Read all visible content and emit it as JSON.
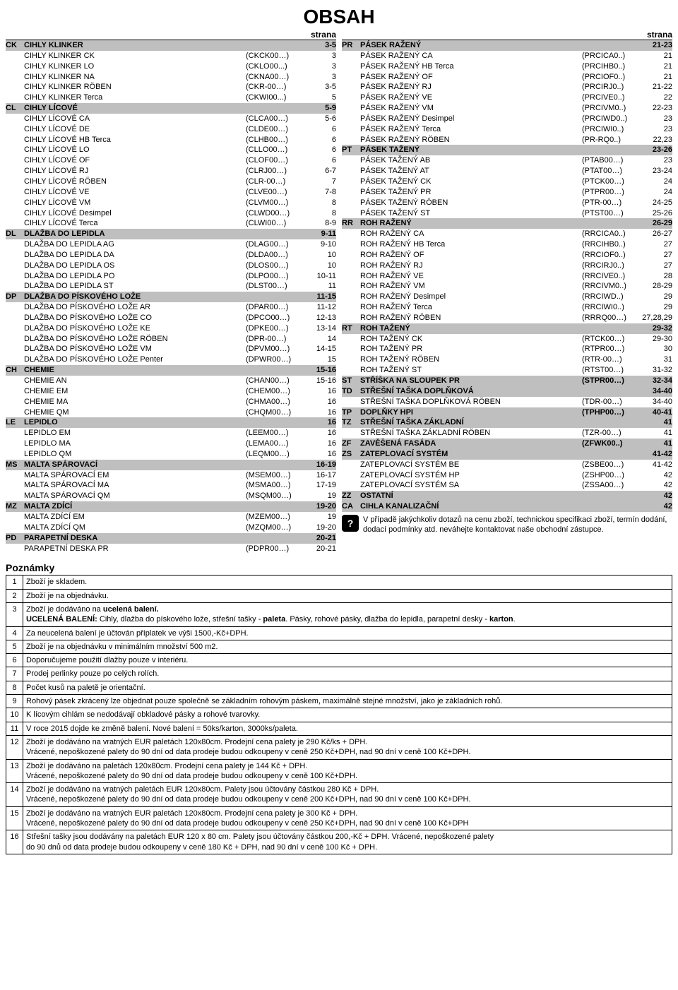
{
  "title": "OBSAH",
  "column_header_left": "strana",
  "column_header_right": "strana",
  "left_rows": [
    {
      "tag": "CK",
      "name": "CIHLY KLINKER",
      "code": "",
      "page": "3-5",
      "style": "section"
    },
    {
      "tag": "",
      "name": "CIHLY KLINKER CK",
      "code": "(CKCK00…)",
      "page": "3",
      "style": ""
    },
    {
      "tag": "",
      "name": "CIHLY KLINKER LO",
      "code": "(CKLO00...)",
      "page": "3",
      "style": ""
    },
    {
      "tag": "",
      "name": "CIHLY KLINKER NA",
      "code": "(CKNA00…)",
      "page": "3",
      "style": ""
    },
    {
      "tag": "",
      "name": "CIHLY KLINKER RÖBEN",
      "code": "(CKR-00…)",
      "page": "3-5",
      "style": ""
    },
    {
      "tag": "",
      "name": "CIHLY KLINKER Terca",
      "code": "(CKWI00...)",
      "page": "5",
      "style": ""
    },
    {
      "tag": "CL",
      "name": "CIHLY LÍCOVÉ",
      "code": "",
      "page": "5-9",
      "style": "section"
    },
    {
      "tag": "",
      "name": "CIHLY LÍCOVÉ CA",
      "code": "(CLCA00…)",
      "page": "5-6",
      "style": ""
    },
    {
      "tag": "",
      "name": "CIHLY LÍCOVÉ DE",
      "code": "(CLDE00…)",
      "page": "6",
      "style": ""
    },
    {
      "tag": "",
      "name": "CIHLY LÍCOVÉ HB Terca",
      "code": "(CLHB00…)",
      "page": "6",
      "style": ""
    },
    {
      "tag": "",
      "name": "CIHLY LÍCOVÉ LO",
      "code": "(CLLO00…)",
      "page": "6",
      "style": ""
    },
    {
      "tag": "",
      "name": "CIHLY LÍCOVÉ OF",
      "code": "(CLOF00…)",
      "page": "6",
      "style": ""
    },
    {
      "tag": "",
      "name": "CIHLY LÍCOVÉ RJ",
      "code": "(CLRJ00…)",
      "page": "6-7",
      "style": ""
    },
    {
      "tag": "",
      "name": "CIHLY LÍCOVÉ RÖBEN",
      "code": "(CLR-00…)",
      "page": "7",
      "style": ""
    },
    {
      "tag": "",
      "name": "CIHLY LÍCOVÉ VE",
      "code": "(CLVE00…)",
      "page": "7-8",
      "style": ""
    },
    {
      "tag": "",
      "name": "CIHLY LÍCOVÉ VM",
      "code": "(CLVM00…)",
      "page": "8",
      "style": ""
    },
    {
      "tag": "",
      "name": "CIHLY LÍCOVÉ Desimpel",
      "code": "(CLWD00…)",
      "page": "8",
      "style": ""
    },
    {
      "tag": "",
      "name": "CIHLY LÍCOVÉ Terca",
      "code": "(CLWI00…)",
      "page": "8-9",
      "style": ""
    },
    {
      "tag": "DL",
      "name": "DLAŽBA DO LEPIDLA",
      "code": "",
      "page": "9-11",
      "style": "section"
    },
    {
      "tag": "",
      "name": "DLAŽBA DO LEPIDLA AG",
      "code": "(DLAG00…)",
      "page": "9-10",
      "style": ""
    },
    {
      "tag": "",
      "name": "DLAŽBA DO LEPIDLA DA",
      "code": "(DLDA00…)",
      "page": "10",
      "style": ""
    },
    {
      "tag": "",
      "name": "DLAŽBA DO LEPIDLA OS",
      "code": "(DLOS00…)",
      "page": "10",
      "style": ""
    },
    {
      "tag": "",
      "name": "DLAŽBA DO LEPIDLA PO",
      "code": "(DLPO00…)",
      "page": "10-11",
      "style": ""
    },
    {
      "tag": "",
      "name": "DLAŽBA DO LEPIDLA ST",
      "code": "(DLST00…)",
      "page": "11",
      "style": ""
    },
    {
      "tag": "DP",
      "name": "DLAŽBA DO PÍSKOVÉHO LOŽE",
      "code": "",
      "page": "11-15",
      "style": "section"
    },
    {
      "tag": "",
      "name": "DLAŽBA DO PÍSKOVÉHO LOŽE AR",
      "code": "(DPAR00…)",
      "page": "11-12",
      "style": ""
    },
    {
      "tag": "",
      "name": "DLAŽBA DO PÍSKOVÉHO LOŽE CO",
      "code": "(DPCO00…)",
      "page": "12-13",
      "style": ""
    },
    {
      "tag": "",
      "name": "DLAŽBA DO PÍSKOVÉHO LOŽE KE",
      "code": "(DPKE00…)",
      "page": "13-14",
      "style": ""
    },
    {
      "tag": "",
      "name": "DLAŽBA DO PÍSKOVÉHO LOŽE RÖBEN",
      "code": "(DPR-00…)",
      "page": "14",
      "style": ""
    },
    {
      "tag": "",
      "name": "DLAŽBA DO PÍSKOVÉHO LOŽE VM",
      "code": "(DPVM00…)",
      "page": "14-15",
      "style": ""
    },
    {
      "tag": "",
      "name": "DLAŽBA DO PÍSKOVÉHO LOŽE Penter",
      "code": "(DPWR00…)",
      "page": "15",
      "style": ""
    },
    {
      "tag": "CH",
      "name": "CHEMIE",
      "code": "",
      "page": "15-16",
      "style": "section"
    },
    {
      "tag": "",
      "name": "CHEMIE AN",
      "code": "(CHAN00…)",
      "page": "15-16",
      "style": ""
    },
    {
      "tag": "",
      "name": "CHEMIE EM",
      "code": "(CHEM00…)",
      "page": "16",
      "style": ""
    },
    {
      "tag": "",
      "name": "CHEMIE MA",
      "code": "(CHMA00…)",
      "page": "16",
      "style": ""
    },
    {
      "tag": "",
      "name": "CHEMIE QM",
      "code": "(CHQM00…)",
      "page": "16",
      "style": ""
    },
    {
      "tag": "LE",
      "name": "LEPIDLO",
      "code": "",
      "page": "16",
      "style": "section"
    },
    {
      "tag": "",
      "name": "LEPIDLO EM",
      "code": "(LEEM00…)",
      "page": "16",
      "style": ""
    },
    {
      "tag": "",
      "name": "LEPIDLO MA",
      "code": "(LEMA00…)",
      "page": "16",
      "style": ""
    },
    {
      "tag": "",
      "name": "LEPIDLO QM",
      "code": "(LEQM00…)",
      "page": "16",
      "style": ""
    },
    {
      "tag": "MS",
      "name": "MALTA SPÁROVACÍ",
      "code": "",
      "page": "16-19",
      "style": "section"
    },
    {
      "tag": "",
      "name": "MALTA SPÁROVACÍ EM",
      "code": "(MSEM00…)",
      "page": "16-17",
      "style": ""
    },
    {
      "tag": "",
      "name": "MALTA SPÁROVACÍ MA",
      "code": "(MSMA00…)",
      "page": "17-19",
      "style": ""
    },
    {
      "tag": "",
      "name": "MALTA SPÁROVACÍ QM",
      "code": "(MSQM00…)",
      "page": "19",
      "style": ""
    },
    {
      "tag": "MZ",
      "name": "MALTA ZDÍCÍ",
      "code": "",
      "page": "19-20",
      "style": "section"
    },
    {
      "tag": "",
      "name": "MALTA ZDÍCÍ EM",
      "code": "(MZEM00…)",
      "page": "19",
      "style": ""
    },
    {
      "tag": "",
      "name": "MALTA ZDÍCÍ QM",
      "code": "(MZQM00…)",
      "page": "19-20",
      "style": ""
    },
    {
      "tag": "PD",
      "name": "PARAPETNÍ DESKA",
      "code": "",
      "page": "20-21",
      "style": "section"
    },
    {
      "tag": "",
      "name": "PARAPETNÍ DESKA PR",
      "code": "(PDPR00…)",
      "page": "20-21",
      "style": ""
    }
  ],
  "right_rows": [
    {
      "tag": "PR",
      "name": "PÁSEK RAŽENÝ",
      "code": "",
      "page": "21-23",
      "style": "section"
    },
    {
      "tag": "",
      "name": "PÁSEK RAŽENÝ CA",
      "code": "(PRCICA0..)",
      "page": "21",
      "style": ""
    },
    {
      "tag": "",
      "name": "PÁSEK RAŽENÝ HB Terca",
      "code": "(PRCIHB0..)",
      "page": "21",
      "style": ""
    },
    {
      "tag": "",
      "name": "PÁSEK RAŽENÝ OF",
      "code": "(PRCIOF0..)",
      "page": "21",
      "style": ""
    },
    {
      "tag": "",
      "name": "PÁSEK RAŽENÝ RJ",
      "code": "(PRCIRJ0..)",
      "page": "21-22",
      "style": ""
    },
    {
      "tag": "",
      "name": "PÁSEK RAŽENÝ VE",
      "code": "(PRCIVE0..)",
      "page": "22",
      "style": ""
    },
    {
      "tag": "",
      "name": "PÁSEK RAŽENÝ VM",
      "code": "(PRCIVM0..)",
      "page": "22-23",
      "style": ""
    },
    {
      "tag": "",
      "name": "PÁSEK RAŽENÝ Desimpel",
      "code": "(PRCIWD0..)",
      "page": "23",
      "style": ""
    },
    {
      "tag": "",
      "name": "PÁSEK RAŽENÝ Terca",
      "code": "(PRCIWI0..)",
      "page": "23",
      "style": ""
    },
    {
      "tag": "",
      "name": "PÁSEK RAŽENÝ RÖBEN",
      "code": "(PR-RQ0..)",
      "page": "22,23",
      "style": ""
    },
    {
      "tag": "PT",
      "name": "PÁSEK TAŽENÝ",
      "code": "",
      "page": "23-26",
      "style": "section"
    },
    {
      "tag": "",
      "name": "PÁSEK TAŽENÝ AB",
      "code": "(PTAB00…)",
      "page": "23",
      "style": ""
    },
    {
      "tag": "",
      "name": "PÁSEK TAŽENÝ AT",
      "code": "(PTAT00…)",
      "page": "23-24",
      "style": ""
    },
    {
      "tag": "",
      "name": "PÁSEK TAŽENÝ CK",
      "code": "(PTCK00…)",
      "page": "24",
      "style": ""
    },
    {
      "tag": "",
      "name": "PÁSEK TAŽENÝ PR",
      "code": "(PTPR00…)",
      "page": "24",
      "style": ""
    },
    {
      "tag": "",
      "name": "PÁSEK TAŽENÝ RÖBEN",
      "code": "(PTR-00…)",
      "page": "24-25",
      "style": ""
    },
    {
      "tag": "",
      "name": "PÁSEK TAŽENÝ ST",
      "code": "(PTST00…)",
      "page": "25-26",
      "style": ""
    },
    {
      "tag": "RR",
      "name": "ROH RAŽENÝ",
      "code": "",
      "page": "26-29",
      "style": "section"
    },
    {
      "tag": "",
      "name": "ROH RAŽENÝ CA",
      "code": "(RRCICA0..)",
      "page": "26-27",
      "style": ""
    },
    {
      "tag": "",
      "name": "ROH RAŽENÝ HB Terca",
      "code": "(RRCIHB0..)",
      "page": "27",
      "style": ""
    },
    {
      "tag": "",
      "name": "ROH RAŽENÝ OF",
      "code": "(RRCIOF0..)",
      "page": "27",
      "style": ""
    },
    {
      "tag": "",
      "name": "ROH RAŽENÝ RJ",
      "code": "(RRCIRJ0..)",
      "page": "27",
      "style": ""
    },
    {
      "tag": "",
      "name": "ROH RAŽENÝ VE",
      "code": "(RRCIVE0..)",
      "page": "28",
      "style": ""
    },
    {
      "tag": "",
      "name": "ROH RAŽENÝ VM",
      "code": "(RRCIVM0..)",
      "page": "28-29",
      "style": ""
    },
    {
      "tag": "",
      "name": "ROH RAŽENÝ Desimpel",
      "code": "(RRCIWD..)",
      "page": "29",
      "style": ""
    },
    {
      "tag": "",
      "name": "ROH RAŽENÝ Terca",
      "code": "(RRCIWI0..)",
      "page": "29",
      "style": ""
    },
    {
      "tag": "",
      "name": "ROH RAŽENÝ RÖBEN",
      "code": "(RRRQ00…)",
      "page": "27,28,29",
      "style": ""
    },
    {
      "tag": "RT",
      "name": "ROH TAŽENÝ",
      "code": "",
      "page": "29-32",
      "style": "section"
    },
    {
      "tag": "",
      "name": "ROH TAŽENÝ CK",
      "code": "(RTCK00…)",
      "page": "29-30",
      "style": ""
    },
    {
      "tag": "",
      "name": "ROH TAŽENÝ PR",
      "code": "(RTPR00…)",
      "page": "30",
      "style": ""
    },
    {
      "tag": "",
      "name": "ROH TAŽENÝ RÖBEN",
      "code": "(RTR-00…)",
      "page": "31",
      "style": ""
    },
    {
      "tag": "",
      "name": "ROH TAŽENÝ ST",
      "code": "(RTST00…)",
      "page": "31-32",
      "style": ""
    },
    {
      "tag": "ST",
      "name": "STŘÍŠKA NA SLOUPEK PR",
      "code": "(STPR00…)",
      "page": "32-34",
      "style": "section"
    },
    {
      "tag": "TD",
      "name": "STŘEŠNÍ TAŠKA DOPLŇKOVÁ",
      "code": "",
      "page": "34-40",
      "style": "section"
    },
    {
      "tag": "",
      "name": "STŘEŠNÍ TAŠKA DOPLŇKOVÁ RÖBEN",
      "code": "(TDR-00…)",
      "page": "34-40",
      "style": ""
    },
    {
      "tag": "TP",
      "name": "DOPLŇKY HPI",
      "code": "(TPHP00…)",
      "page": "40-41",
      "style": "section"
    },
    {
      "tag": "TZ",
      "name": "STŘEŠNÍ TAŠKA ZÁKLADNÍ",
      "code": "",
      "page": "41",
      "style": "section"
    },
    {
      "tag": "",
      "name": "STŘEŠNÍ TAŠKA ZÁKLADNÍ RÖBEN",
      "code": "(TZR-00…)",
      "page": "41",
      "style": ""
    },
    {
      "tag": "ZF",
      "name": "ZAVĚŠENÁ FASÁDA",
      "code": "(ZFWK00..)",
      "page": "41",
      "style": "section"
    },
    {
      "tag": "ZS",
      "name": "ZATEPLOVACÍ SYSTÉM",
      "code": "",
      "page": "41-42",
      "style": "section"
    },
    {
      "tag": "",
      "name": "ZATEPLOVACÍ SYSTÉM BE",
      "code": "(ZSBE00…)",
      "page": "41-42",
      "style": ""
    },
    {
      "tag": "",
      "name": "ZATEPLOVACÍ SYSTÉM HP",
      "code": "(ZSHP00…)",
      "page": "42",
      "style": ""
    },
    {
      "tag": "",
      "name": "ZATEPLOVACÍ SYSTÉM SA",
      "code": "(ZSSA00…)",
      "page": "42",
      "style": ""
    },
    {
      "tag": "ZZ",
      "name": "OSTATNÍ",
      "code": "",
      "page": "42",
      "style": "section"
    },
    {
      "tag": "CA",
      "name": "CIHLA KANALIZAČNÍ",
      "code": "",
      "page": "42",
      "style": "section"
    }
  ],
  "info_note": "V případě jakýchkoliv dotazů na cenu zboží, technickou specifikaci zboží, termín dodání, dodací podmínky atd. neváhejte kontaktovat naše obchodní zástupce.",
  "info_icon": "?",
  "pozn_title": "Poznámky",
  "notes": [
    {
      "n": "1",
      "lines": [
        "Zboží je skladem."
      ]
    },
    {
      "n": "2",
      "lines": [
        "Zboží je na objednávku."
      ]
    },
    {
      "n": "3",
      "lines": [
        "Zboží je dodáváno na <b>ucelená balení.</b>",
        "<b>UCELENÁ BALENÍ:</b> Cihly, dlažba do pískového lože, střešní tašky - <b>paleta</b>. Pásky, rohové pásky, dlažba do lepidla, parapetní desky - <b>karton</b>."
      ]
    },
    {
      "n": "4",
      "lines": [
        "Za neucelená balení je účtován příplatek ve výši 1500,-Kč+DPH."
      ]
    },
    {
      "n": "5",
      "lines": [
        "Zboží je na objednávku v minimálním množství 500 m2."
      ]
    },
    {
      "n": "6",
      "lines": [
        "Doporučujeme použití dlažby pouze v interiéru."
      ]
    },
    {
      "n": "7",
      "lines": [
        "Prodej perlinky pouze po celých rolích."
      ]
    },
    {
      "n": "8",
      "lines": [
        "Počet kusů na paletě je orientační."
      ]
    },
    {
      "n": "9",
      "lines": [
        "Rohový pásek zkrácený lze objednat pouze společně se základním rohovým páskem, maximálně stejné množství, jako je základních rohů."
      ]
    },
    {
      "n": "10",
      "lines": [
        "K lícovým cihlám se nedodávají obkladové pásky a rohové tvarovky."
      ]
    },
    {
      "n": "11",
      "lines": [
        "V roce 2015 dojde ke změně balení. Nové balení = 50ks/karton, 3000ks/paleta."
      ]
    },
    {
      "n": "12",
      "lines": [
        "Zboží je dodáváno na vratných EUR paletách 120x80cm. Prodejní cena palety je 290 Kč/ks + DPH.",
        "Vrácené, nepoškozené palety do 90 dní od data prodeje budou odkoupeny v ceně 250 Kč+DPH, nad 90 dní v ceně 100 Kč+DPH."
      ]
    },
    {
      "n": "13",
      "lines": [
        "Zboží je dodáváno na paletách 120x80cm. Prodejní cena palety je 144 Kč + DPH.",
        "Vrácené, nepoškozené palety do 90 dní od data prodeje budou odkoupeny v ceně 100 Kč+DPH."
      ]
    },
    {
      "n": "14",
      "lines": [
        "Zboží je dodáváno na vratných paletách EUR 120x80cm. Palety jsou účtovány částkou 280 Kč + DPH.",
        "Vrácené, nepoškozené palety do 90 dní od data prodeje budou odkoupeny v ceně 200 Kč+DPH, nad 90 dní v ceně 100 Kč+DPH."
      ]
    },
    {
      "n": "15",
      "lines": [
        "Zboží je dodáváno na vratných EUR paletách 120x80cm. Prodejní cena palety je 300 Kč + DPH.",
        "Vrácené, nepoškozené palety do 90 dní od data prodeje budou odkoupeny v ceně 250 Kč+DPH, nad 90 dní v ceně 100 Kč+DPH"
      ]
    },
    {
      "n": "16",
      "lines": [
        "Střešní tašky jsou dodávány na paletách EUR 120 x 80 cm. Palety jsou účtovány částkou 200,-Kč + DPH. Vrácené, nepoškozené palety",
        "do 90 dnů od data prodeje budou odkoupeny v ceně 180 Kč + DPH, nad 90 dní v ceně 100 Kč + DPH."
      ]
    }
  ],
  "colors": {
    "section_bg": "#bfbfbf",
    "text": "#000000",
    "page_bg": "#ffffff"
  }
}
